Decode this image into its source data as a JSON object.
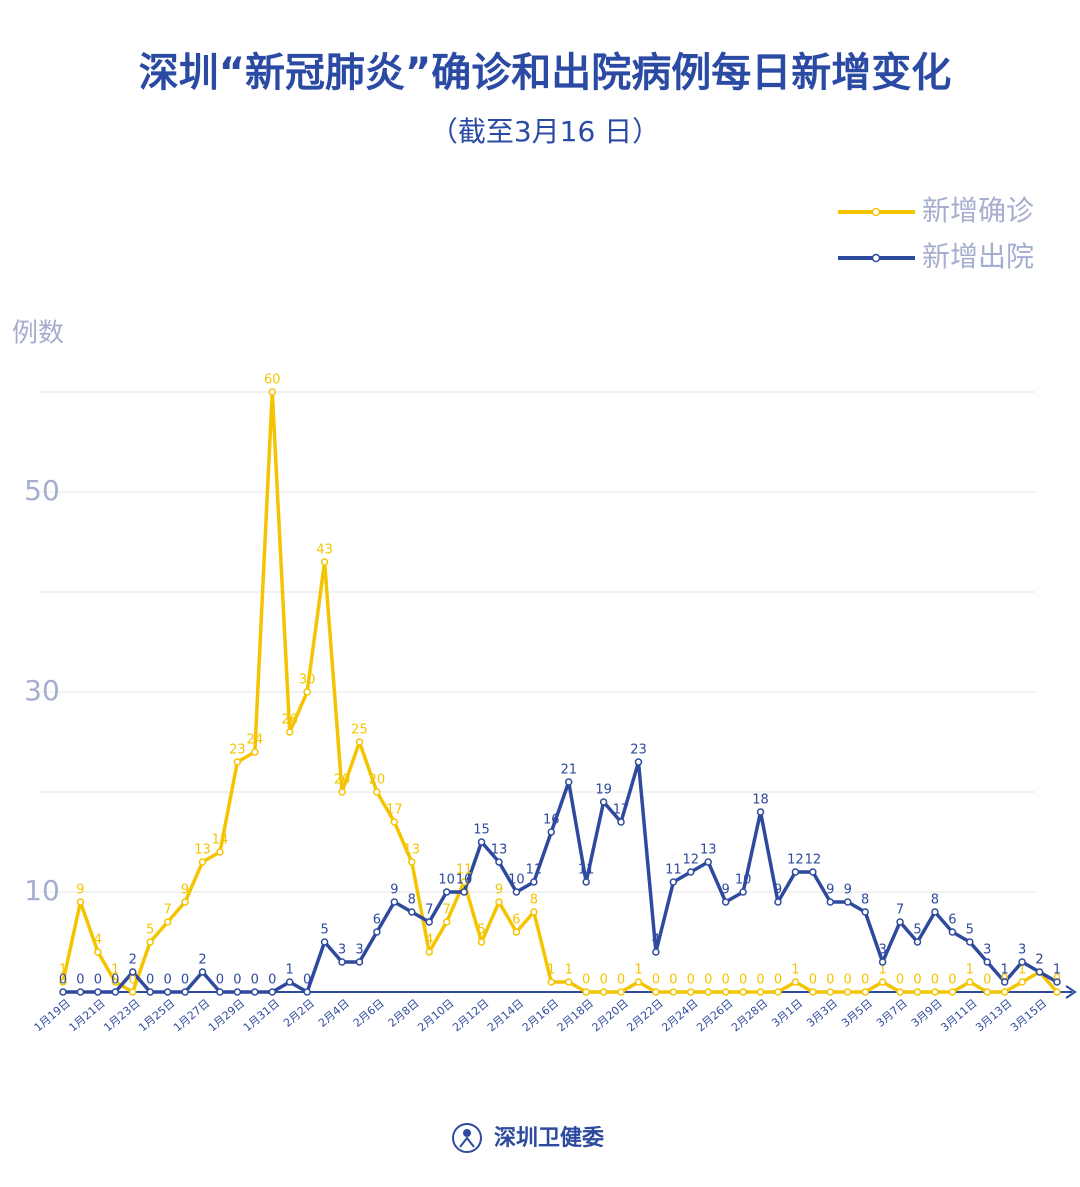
{
  "chart_data": {
    "type": "line",
    "title": "深圳“新冠肺炎”确诊和出院病例每日新增变化",
    "subtitle": "（截至3月16 日）",
    "y_label": "例数",
    "source": "深圳卫健委",
    "categories": [
      "1月19日",
      null,
      "1月21日",
      null,
      "1月23日",
      null,
      "1月25日",
      null,
      "1月27日",
      null,
      "1月29日",
      null,
      "1月31日",
      null,
      "2月2日",
      null,
      "2月4日",
      null,
      "2月6日",
      null,
      "2月8日",
      null,
      "2月10日",
      null,
      "2月12日",
      null,
      "2月14日",
      null,
      "2月16日",
      null,
      "2月18日",
      null,
      "2月20日",
      null,
      "2月22日",
      null,
      "2月24日",
      null,
      "2月26日",
      null,
      "2月28日",
      null,
      "3月1日",
      null,
      "3月3日",
      null,
      "3月5日",
      null,
      "3月7日",
      null,
      "3月9日",
      null,
      "3月11日",
      null,
      "3月13日",
      null,
      "3月15日",
      null
    ],
    "series": [
      {
        "name": "新增确诊",
        "color": "#f5c400",
        "values": [
          1,
          9,
          4,
          1,
          0,
          5,
          7,
          9,
          13,
          14,
          23,
          24,
          60,
          26,
          30,
          43,
          20,
          25,
          20,
          17,
          13,
          4,
          7,
          11,
          5,
          9,
          6,
          8,
          1,
          1,
          0,
          0,
          0,
          1,
          0,
          0,
          0,
          0,
          0,
          0,
          0,
          0,
          1,
          0,
          0,
          0,
          0,
          1,
          0,
          0,
          0,
          0,
          1,
          0,
          0,
          1,
          2,
          0
        ]
      },
      {
        "name": "新增出院",
        "color": "#2e4a9e",
        "values": [
          0,
          0,
          0,
          0,
          2,
          0,
          0,
          0,
          2,
          0,
          0,
          0,
          0,
          1,
          0,
          5,
          3,
          3,
          6,
          9,
          8,
          7,
          10,
          10,
          15,
          13,
          10,
          11,
          16,
          21,
          11,
          19,
          17,
          23,
          4,
          11,
          12,
          13,
          9,
          10,
          18,
          9,
          12,
          12,
          9,
          9,
          8,
          3,
          7,
          5,
          8,
          6,
          5,
          3,
          1,
          3,
          2,
          1
        ]
      }
    ],
    "ylim": [
      0,
      60
    ],
    "yticks": [
      10,
      30,
      50
    ],
    "minor_yticks": [
      20,
      40,
      60
    ],
    "grid": true
  }
}
